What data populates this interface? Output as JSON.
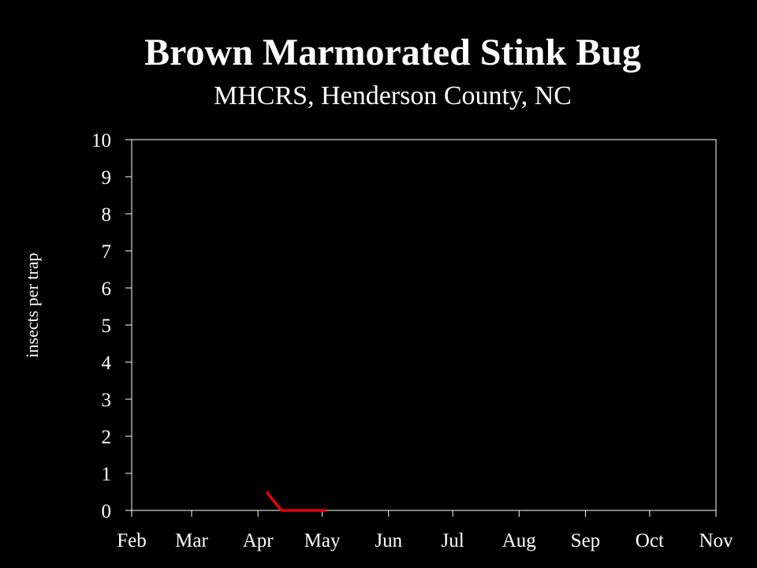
{
  "chart_data": {
    "type": "line",
    "title": "Brown Marmorated Stink Bug",
    "subtitle": "MHCRS, Henderson County, NC",
    "ylabel": "insects per trap",
    "xlabel": "",
    "x_tick_labels": [
      "Feb",
      "Mar",
      "Apr",
      "May",
      "Jun",
      "Jul",
      "Aug",
      "Sep",
      "Oct",
      "Nov"
    ],
    "y_tick_labels": [
      "0",
      "1",
      "2",
      "3",
      "4",
      "5",
      "6",
      "7",
      "8",
      "9",
      "10"
    ],
    "ylim": [
      0,
      10
    ],
    "xlim": [
      "2011-02-01",
      "2011-11-01"
    ],
    "grid": false,
    "legend": "none",
    "series": [
      {
        "color": "#e8000b",
        "points": [
          {
            "x": "2011-04-05",
            "y": 0.5
          },
          {
            "x": "2011-04-12",
            "y": 0.0
          },
          {
            "x": "2011-04-19",
            "y": 0.0
          },
          {
            "x": "2011-04-26",
            "y": 0.0
          },
          {
            "x": "2011-05-03",
            "y": 0.0
          }
        ]
      }
    ],
    "colors": {
      "background": "#000000",
      "axis": "#ffffff",
      "text": "#ffffff"
    }
  }
}
